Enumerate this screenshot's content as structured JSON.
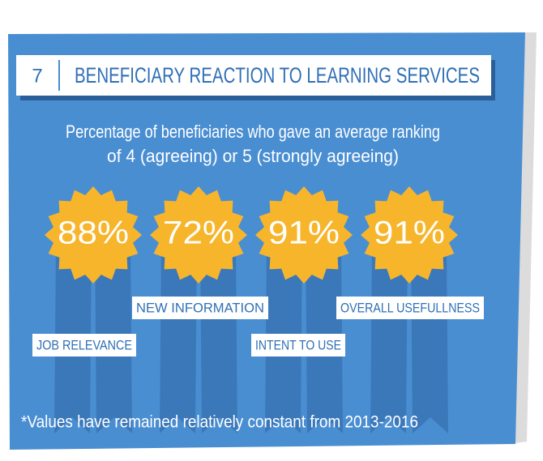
{
  "header": {
    "number": "7",
    "title": "BENEFICIARY REACTION TO LEARNING SERVICES"
  },
  "subtitle": [
    "Percentage of beneficiaries who gave an average ranking",
    "of 4 (agreeing) or 5 (strongly agreeing)"
  ],
  "badges": [
    {
      "value": "88%",
      "label": "JOB RELEVANCE"
    },
    {
      "value": "72%",
      "label": "NEW INFORMATION"
    },
    {
      "value": "91%",
      "label": "INTENT TO USE"
    },
    {
      "value": "91%",
      "label": "OVERALL USEFULLNESS"
    }
  ],
  "footnote": "*Values have remained relatively constant from 2013-2016"
}
